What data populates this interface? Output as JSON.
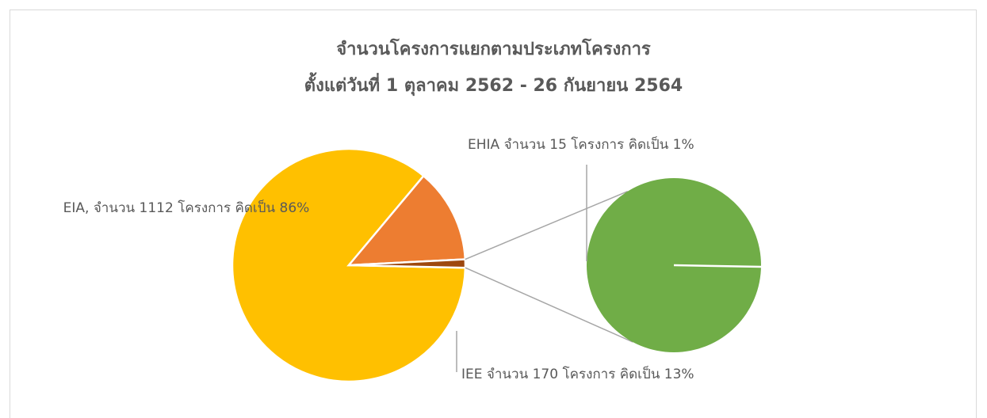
{
  "chart_data": {
    "type": "pie-of-pie",
    "title": "จำนวนโครงการแยกตามประเภทโครงการ",
    "subtitle": "ตั้งแต่วันที่ 1 ตุลาคม 2562 - 26 กันยายน 2564",
    "values": [
      1112,
      170,
      15
    ],
    "value_labels": [
      "EIA, จำนวน 1112 โครงการ คิดเป็น 86%",
      "IEE จำนวน 170 โครงการ คิดเป็น 13%",
      "EHIA จำนวน 15 โครงการ คิดเป็น 1%"
    ],
    "colors": [
      "#ffc000",
      "#ed7d31",
      "#9e480e"
    ],
    "split_index": 2,
    "secondary_color": "#70ad47"
  }
}
